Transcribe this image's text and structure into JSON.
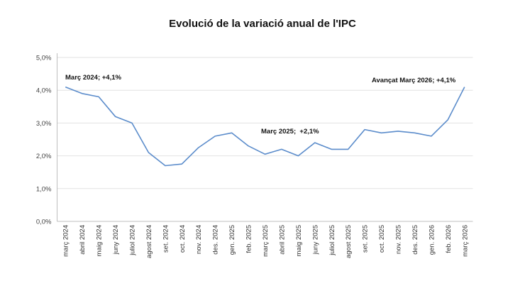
{
  "chart_data": {
    "type": "line",
    "title": "Evolució de la variació anual de l'IPC",
    "xlabel": "",
    "ylabel": "",
    "ylim": [
      0,
      5
    ],
    "yticks": [
      "0,0%",
      "1,0%",
      "2,0%",
      "3,0%",
      "4,0%",
      "5,0%"
    ],
    "grid": true,
    "legend": "none",
    "line_color": "#5b8ccb",
    "categories": [
      "març 2024",
      "abril 2024",
      "maig 2024",
      "juny 2024",
      "juliol 2024",
      "agost 2024",
      "set. 2024",
      "oct. 2024",
      "nov. 2024",
      "des. 2024",
      "gen. 2025",
      "feb. 2025",
      "març 2025",
      "abril 2025",
      "maig 2025",
      "juny 2025",
      "juliol 2025",
      "agost 2025",
      "set. 2025",
      "oct. 2025",
      "nov. 2025",
      "des. 2025",
      "gen. 2026",
      "feb. 2026",
      "març 2026"
    ],
    "values": [
      4.1,
      3.9,
      3.8,
      3.2,
      3.0,
      2.1,
      1.7,
      1.75,
      2.25,
      2.6,
      2.7,
      2.3,
      2.05,
      2.2,
      2.0,
      2.4,
      2.2,
      2.2,
      2.8,
      2.7,
      2.75,
      2.7,
      2.6,
      3.1,
      4.1
    ],
    "annotations": [
      {
        "text": "Març 2024; +4,1%",
        "category": "març 2024"
      },
      {
        "text": "Març 2025;  +2,1%",
        "category": "març 2025"
      },
      {
        "text": "Avançat Març 2026; +4,1%",
        "category": "març 2026"
      }
    ]
  }
}
